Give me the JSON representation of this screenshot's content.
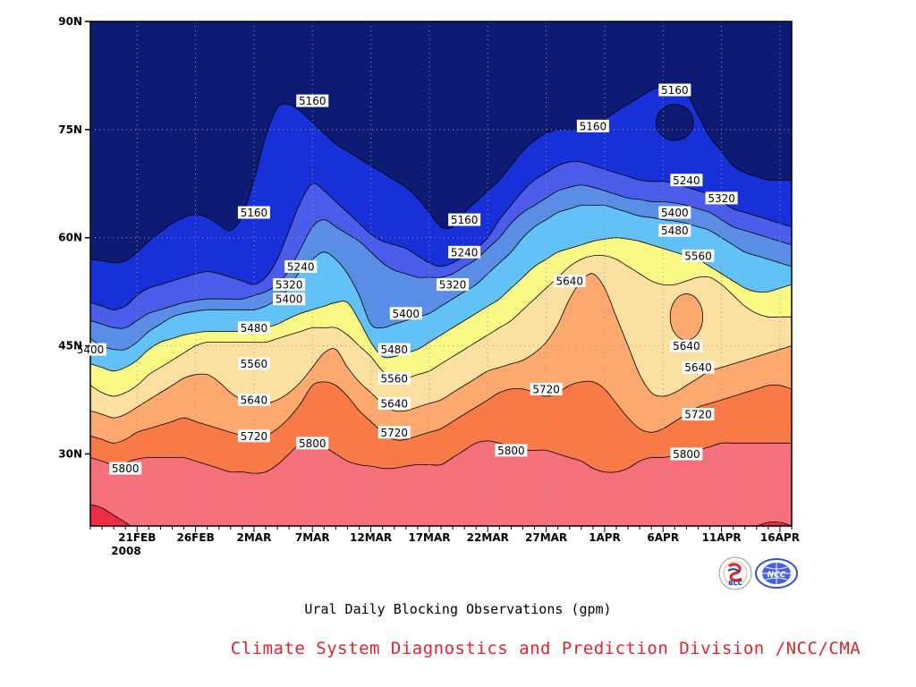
{
  "chart_data": {
    "type": "contour",
    "title": "Ural Daily Blocking Observations (gpm)",
    "units": "gpm",
    "y_ticks": [
      "30N",
      "45N",
      "60N",
      "75N",
      "90N"
    ],
    "y_tick_values": [
      30,
      45,
      60,
      75,
      90
    ],
    "ylim": [
      20,
      90
    ],
    "x_ticks": [
      "21FEB",
      "26FEB",
      "2MAR",
      "7MAR",
      "12MAR",
      "17MAR",
      "22MAR",
      "27MAR",
      "1APR",
      "6APR",
      "11APR",
      "16APR"
    ],
    "x_year_label": "2008",
    "x_days": [
      "17FEB",
      "18FEB",
      "19FEB",
      "20FEB",
      "21FEB",
      "22FEB",
      "23FEB",
      "24FEB",
      "25FEB",
      "26FEB",
      "27FEB",
      "28FEB",
      "29FEB",
      "1MAR",
      "2MAR",
      "3MAR",
      "4MAR",
      "5MAR",
      "6MAR",
      "7MAR",
      "8MAR",
      "9MAR",
      "10MAR",
      "11MAR",
      "12MAR",
      "13MAR",
      "14MAR",
      "15MAR",
      "16MAR",
      "17MAR",
      "18MAR",
      "19MAR",
      "20MAR",
      "21MAR",
      "22MAR",
      "23MAR",
      "24MAR",
      "25MAR",
      "26MAR",
      "27MAR",
      "28MAR",
      "29MAR",
      "30MAR",
      "31MAR",
      "1APR",
      "2APR",
      "3APR",
      "4APR",
      "5APR",
      "6APR",
      "7APR",
      "8APR",
      "9APR",
      "10APR",
      "11APR",
      "12APR",
      "13APR",
      "14APR",
      "15APR",
      "16APR",
      "17APR"
    ],
    "grid": true,
    "contour_levels": [
      5160,
      5240,
      5320,
      5400,
      5480,
      5560,
      5640,
      5720,
      5800,
      5880
    ],
    "contour_colors": [
      "#0d1b74",
      "#1730d8",
      "#4b5bea",
      "#5a8ee6",
      "#62c2f8",
      "#fbf985",
      "#fbe0a2",
      "#fca86e",
      "#fa7a47",
      "#f6707c",
      "#ee2d45"
    ],
    "isolines": [
      {
        "level": 5160,
        "lat": [
          57.0,
          56.8,
          56.5,
          56.8,
          58.0,
          59.5,
          60.8,
          62.0,
          62.8,
          63.2,
          62.8,
          61.8,
          61.0,
          63.0,
          68.0,
          74.0,
          78.0,
          78.5,
          77.5,
          76.0,
          74.5,
          73.0,
          72.0,
          71.0,
          70.0,
          69.0,
          68.0,
          67.0,
          65.5,
          63.5,
          61.5,
          61.5,
          63.5,
          65.0,
          66.5,
          68.0,
          70.0,
          72.0,
          73.5,
          74.5,
          75.0,
          75.0,
          75.0,
          75.5,
          76.5,
          77.5,
          78.5,
          79.5,
          80.5,
          81.0,
          81.0,
          80.0,
          77.0,
          74.0,
          72.0,
          70.0,
          69.0,
          68.5,
          68.0,
          68.0,
          68.0
        ]
      },
      {
        "level": 5240,
        "lat": [
          51.0,
          50.5,
          50.0,
          50.5,
          52.0,
          53.0,
          53.5,
          54.0,
          54.5,
          55.0,
          55.3,
          55.0,
          54.5,
          54.0,
          53.5,
          54.5,
          57.0,
          61.0,
          65.0,
          67.5,
          66.5,
          65.0,
          63.5,
          62.0,
          60.5,
          59.5,
          59.0,
          58.5,
          57.5,
          56.5,
          56.0,
          56.5,
          57.5,
          58.5,
          60.0,
          62.5,
          64.5,
          66.5,
          68.0,
          69.0,
          70.0,
          70.5,
          70.5,
          70.0,
          69.5,
          69.0,
          68.5,
          68.0,
          67.8,
          67.8,
          67.5,
          67.0,
          66.5,
          66.0,
          65.0,
          64.0,
          63.5,
          63.0,
          62.5,
          62.0,
          61.5
        ]
      },
      {
        "level": 5320,
        "lat": [
          48.5,
          48.0,
          47.5,
          47.5,
          48.5,
          49.5,
          50.0,
          50.5,
          51.0,
          51.3,
          51.5,
          51.5,
          51.5,
          51.5,
          52.0,
          52.5,
          53.5,
          55.5,
          58.5,
          61.5,
          62.5,
          61.5,
          60.5,
          59.5,
          58.0,
          56.5,
          55.5,
          55.0,
          54.5,
          54.5,
          54.5,
          55.0,
          56.0,
          57.0,
          58.5,
          60.0,
          62.0,
          63.5,
          64.5,
          65.5,
          66.5,
          67.0,
          67.3,
          67.0,
          66.5,
          66.0,
          65.5,
          65.3,
          65.0,
          65.0,
          64.8,
          64.5,
          64.0,
          63.5,
          62.5,
          61.5,
          61.0,
          60.5,
          60.0,
          59.5,
          59.0
        ]
      },
      {
        "level": 5400,
        "lat": [
          46.0,
          45.0,
          44.5,
          44.5,
          45.5,
          47.0,
          48.0,
          49.0,
          49.5,
          49.8,
          50.0,
          50.0,
          50.0,
          50.0,
          50.0,
          50.5,
          51.5,
          53.0,
          55.5,
          57.0,
          58.0,
          57.0,
          55.0,
          52.0,
          48.0,
          47.5,
          48.0,
          48.5,
          49.0,
          49.5,
          50.5,
          51.5,
          52.5,
          53.5,
          55.0,
          56.5,
          58.0,
          60.0,
          61.5,
          62.5,
          63.5,
          64.0,
          64.5,
          64.5,
          64.5,
          64.0,
          63.5,
          63.0,
          62.8,
          62.5,
          62.3,
          62.0,
          61.5,
          61.0,
          60.0,
          59.0,
          58.0,
          57.5,
          57.0,
          56.5,
          56.0
        ]
      },
      {
        "level": 5480,
        "lat": [
          42.5,
          42.0,
          41.5,
          42.0,
          43.0,
          44.5,
          45.5,
          46.0,
          46.5,
          46.8,
          47.0,
          47.0,
          47.0,
          47.0,
          47.0,
          47.5,
          48.0,
          48.8,
          49.5,
          50.0,
          50.5,
          51.0,
          51.0,
          48.5,
          45.5,
          43.5,
          43.5,
          44.0,
          44.5,
          45.5,
          46.5,
          47.5,
          48.5,
          49.5,
          50.5,
          51.5,
          53.0,
          54.5,
          56.0,
          57.0,
          58.0,
          58.5,
          59.0,
          59.5,
          59.8,
          60.0,
          59.8,
          59.5,
          59.0,
          58.5,
          58.0,
          57.5,
          57.0,
          56.0,
          55.0,
          54.0,
          53.0,
          52.5,
          52.5,
          53.0,
          53.5
        ]
      },
      {
        "level": 5560,
        "lat": [
          39.5,
          38.5,
          38.0,
          38.5,
          39.5,
          41.0,
          42.0,
          43.0,
          44.0,
          45.0,
          45.5,
          45.5,
          45.5,
          45.5,
          45.5,
          45.5,
          46.0,
          46.5,
          47.0,
          47.5,
          47.5,
          47.5,
          46.5,
          45.0,
          43.5,
          41.5,
          40.5,
          40.5,
          41.0,
          41.5,
          42.5,
          43.5,
          44.5,
          45.5,
          46.5,
          47.5,
          48.5,
          50.0,
          51.5,
          53.0,
          54.5,
          56.0,
          57.0,
          57.5,
          57.5,
          57.0,
          56.0,
          55.0,
          54.0,
          53.5,
          53.5,
          54.0,
          54.5,
          54.5,
          53.5,
          52.0,
          50.5,
          49.5,
          49.0,
          49.0,
          49.0
        ]
      },
      {
        "level": 5640,
        "lat": [
          36.0,
          35.5,
          35.0,
          35.5,
          36.5,
          37.5,
          38.5,
          39.5,
          40.5,
          41.0,
          41.0,
          40.0,
          38.5,
          37.5,
          37.0,
          37.0,
          37.5,
          38.5,
          40.0,
          42.0,
          44.0,
          44.5,
          42.0,
          40.0,
          38.5,
          37.0,
          36.0,
          36.0,
          36.5,
          37.0,
          37.5,
          38.5,
          39.5,
          40.5,
          41.5,
          42.0,
          42.5,
          43.0,
          44.0,
          45.5,
          48.0,
          51.5,
          54.0,
          55.0,
          53.0,
          49.0,
          45.0,
          41.0,
          38.5,
          38.0,
          38.5,
          39.5,
          40.5,
          41.5,
          42.0,
          42.5,
          43.0,
          43.5,
          44.0,
          44.5,
          45.0
        ]
      },
      {
        "level": 5720,
        "lat": [
          32.5,
          32.0,
          31.5,
          32.0,
          33.0,
          33.5,
          34.0,
          34.5,
          35.0,
          34.5,
          34.0,
          33.5,
          33.0,
          32.5,
          32.0,
          32.5,
          33.5,
          35.0,
          37.0,
          39.5,
          40.0,
          39.5,
          38.0,
          36.0,
          34.5,
          33.0,
          32.0,
          32.0,
          32.5,
          33.0,
          33.5,
          34.5,
          35.5,
          36.5,
          37.5,
          38.5,
          39.0,
          39.0,
          38.5,
          38.0,
          38.5,
          39.5,
          40.0,
          40.0,
          39.0,
          37.0,
          35.0,
          33.5,
          33.0,
          33.5,
          34.5,
          35.5,
          36.5,
          37.0,
          37.5,
          38.0,
          38.5,
          39.0,
          39.5,
          39.5,
          39.0
        ]
      },
      {
        "level": 5800,
        "lat": [
          29.5,
          29.0,
          28.5,
          28.8,
          29.3,
          29.5,
          29.5,
          29.5,
          29.5,
          29.0,
          28.5,
          28.0,
          27.5,
          27.5,
          27.3,
          27.5,
          28.5,
          30.0,
          31.5,
          32.0,
          31.0,
          30.0,
          29.0,
          28.5,
          28.3,
          28.0,
          28.0,
          28.3,
          28.5,
          28.5,
          28.5,
          29.5,
          30.5,
          31.5,
          31.8,
          31.5,
          31.0,
          30.5,
          30.5,
          30.5,
          30.0,
          29.5,
          29.0,
          28.0,
          27.5,
          27.5,
          28.0,
          29.0,
          29.5,
          29.5,
          29.8,
          30.0,
          30.5,
          31.0,
          31.5,
          31.5,
          31.5,
          31.5,
          31.5,
          31.5,
          31.5
        ]
      },
      {
        "level": 5880,
        "lat": [
          23.0,
          22.5,
          21.5,
          20.5,
          19.5,
          19.5,
          19.5,
          19.5,
          19.5,
          19.5,
          19.5,
          19.5,
          19.5,
          19.5,
          19.5,
          19.5,
          19.5,
          19.5,
          19.5,
          19.5,
          19.5,
          19.5,
          19.5,
          19.5,
          19.5,
          19.5,
          19.5,
          19.5,
          19.5,
          19.5,
          19.5,
          19.5,
          19.5,
          19.5,
          19.5,
          19.5,
          19.5,
          19.5,
          19.5,
          19.5,
          19.5,
          19.5,
          19.5,
          19.5,
          19.5,
          19.5,
          19.5,
          19.5,
          19.5,
          19.5,
          19.5,
          19.5,
          19.5,
          19.5,
          19.5,
          19.5,
          19.5,
          20.0,
          20.5,
          20.5,
          20.0
        ]
      }
    ],
    "contour_labels": [
      {
        "text": "5160",
        "day": "7MAR",
        "lat": 79
      },
      {
        "text": "5160",
        "day": "2MAR",
        "lat": 63.5
      },
      {
        "text": "5160",
        "day": "20MAR",
        "lat": 62.5
      },
      {
        "text": "5160",
        "day": "31MAR",
        "lat": 75.5
      },
      {
        "text": "5160",
        "day": "7APR",
        "lat": 80.5
      },
      {
        "text": "5240",
        "day": "8APR",
        "lat": 68
      },
      {
        "text": "5240",
        "day": "6MAR",
        "lat": 56
      },
      {
        "text": "5240",
        "day": "20MAR",
        "lat": 58
      },
      {
        "text": "5320",
        "day": "11APR",
        "lat": 65.5
      },
      {
        "text": "5320",
        "day": "5MAR",
        "lat": 53.5
      },
      {
        "text": "5320",
        "day": "19MAR",
        "lat": 53.5
      },
      {
        "text": "5400",
        "day": "7APR",
        "lat": 63.5
      },
      {
        "text": "5400",
        "day": "5MAR",
        "lat": 51.5
      },
      {
        "text": "5400",
        "day": "15MAR",
        "lat": 49.5
      },
      {
        "text": "5400",
        "day": "17FEB",
        "lat": 44.5
      },
      {
        "text": "5480",
        "day": "7APR",
        "lat": 61
      },
      {
        "text": "5480",
        "day": "2MAR",
        "lat": 47.5
      },
      {
        "text": "5480",
        "day": "14MAR",
        "lat": 44.5
      },
      {
        "text": "5560",
        "day": "9APR",
        "lat": 57.5
      },
      {
        "text": "5560",
        "day": "2MAR",
        "lat": 42.5
      },
      {
        "text": "5560",
        "day": "14MAR",
        "lat": 40.5
      },
      {
        "text": "5640",
        "day": "29MAR",
        "lat": 54
      },
      {
        "text": "5640",
        "day": "8APR",
        "lat": 45
      },
      {
        "text": "5640",
        "day": "9APR",
        "lat": 42
      },
      {
        "text": "5640",
        "day": "2MAR",
        "lat": 37.5
      },
      {
        "text": "5640",
        "day": "14MAR",
        "lat": 37
      },
      {
        "text": "5720",
        "day": "27MAR",
        "lat": 39
      },
      {
        "text": "5720",
        "day": "9APR",
        "lat": 35.5
      },
      {
        "text": "5720",
        "day": "2MAR",
        "lat": 32.5
      },
      {
        "text": "5720",
        "day": "14MAR",
        "lat": 33
      },
      {
        "text": "5800",
        "day": "7MAR",
        "lat": 31.5
      },
      {
        "text": "5800",
        "day": "24MAR",
        "lat": 30.5
      },
      {
        "text": "5800",
        "day": "8APR",
        "lat": 30
      },
      {
        "text": "5800",
        "day": "20FEB",
        "lat": 28
      }
    ],
    "closed_contours": [
      {
        "level": 5640,
        "center_day": "8APR",
        "center_lat": 49,
        "half_days": 1.4,
        "half_lat": 3.2
      },
      {
        "level": 5160,
        "center_day": "7APR",
        "center_lat": 76,
        "half_days": 1.6,
        "half_lat": 2.5
      }
    ],
    "credit": "Climate System Diagnostics and Prediction Division /NCC/CMA",
    "logos": [
      "BCC",
      "NCC"
    ]
  }
}
